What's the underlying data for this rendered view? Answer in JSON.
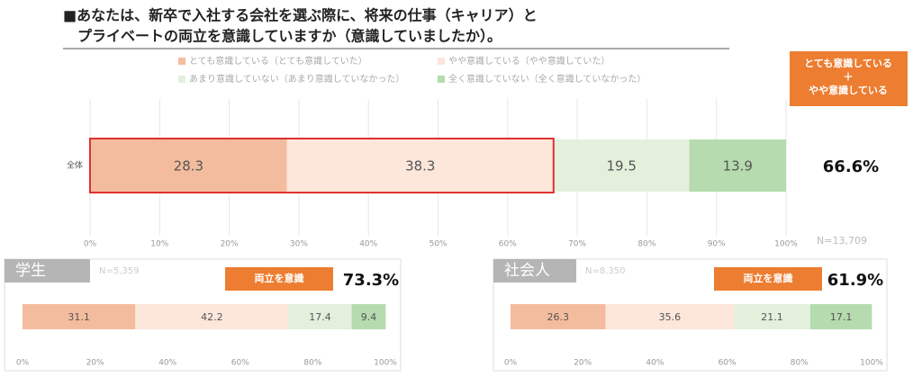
{
  "title": [
    "■あなたは、新卒で入社する会社を選ぶ際に、将来の仕事（キャリア）と",
    "プライベートの両立を意識していますか（意識していましたか）。"
  ],
  "chart_data": [
    {
      "type": "stacked_bar_h",
      "categories": [
        "全体"
      ],
      "series": [
        {
          "name": "とても意識している（とても意識していた）",
          "color": "#f4bc9e",
          "values": [
            28.3
          ]
        },
        {
          "name": "やや意識している（やや意識していた）",
          "color": "#fde6da",
          "values": [
            38.3
          ]
        },
        {
          "name": "あまり意識していない（あまり意識していなかった）",
          "color": "#e3f0dc",
          "values": [
            19.5
          ]
        },
        {
          "name": "全く意識していない（全く意識していなかった）",
          "color": "#b5dbae",
          "values": [
            13.9
          ]
        }
      ],
      "xlim": [
        0,
        100
      ],
      "xticks": [
        {
          "value": 0,
          "label": "0%"
        },
        {
          "value": 10,
          "label": "10%"
        },
        {
          "value": 20,
          "label": "20%"
        },
        {
          "value": 30,
          "label": "30%"
        },
        {
          "value": 40,
          "label": "40%"
        },
        {
          "value": 50,
          "label": "50%"
        },
        {
          "value": 60,
          "label": "60%"
        },
        {
          "value": 70,
          "label": "70%"
        },
        {
          "value": 80,
          "label": "80%"
        },
        {
          "value": 90,
          "label": "90%"
        },
        {
          "value": 100,
          "label": "100%"
        }
      ],
      "grid": true,
      "note": "N=13,709",
      "badge": [
        "とても意識している",
        "＋",
        "やや意識している"
      ],
      "summary": {
        "value": 66.6,
        "label": "66.6%"
      }
    },
    {
      "type": "stacked_bar_h",
      "subtitle": "学生",
      "note": "N=5,359",
      "badge": [
        "両立を意識"
      ],
      "values": [
        31.1,
        42.2,
        17.4,
        9.4
      ],
      "xlim": [
        0,
        100
      ],
      "xticks": [
        {
          "value": 0,
          "label": "0%"
        },
        {
          "value": 20,
          "label": "20%"
        },
        {
          "value": 40,
          "label": "40%"
        },
        {
          "value": 60,
          "label": "60%"
        },
        {
          "value": 80,
          "label": "80%"
        },
        {
          "value": 100,
          "label": "100%"
        }
      ],
      "summary": {
        "value": 73.3,
        "label": "73.3%"
      }
    },
    {
      "type": "stacked_bar_h",
      "subtitle": "社会人",
      "note": "N=8,350",
      "badge": [
        "両立を意識"
      ],
      "values": [
        26.3,
        35.6,
        21.1,
        17.1
      ],
      "xlim": [
        0,
        100
      ],
      "xticks": [
        {
          "value": 0,
          "label": "0%"
        },
        {
          "value": 20,
          "label": "20%"
        },
        {
          "value": 40,
          "label": "40%"
        },
        {
          "value": 60,
          "label": "60%"
        },
        {
          "value": 80,
          "label": "80%"
        },
        {
          "value": 100,
          "label": "100%"
        }
      ],
      "summary": {
        "value": 61.9,
        "label": "61.9%"
      }
    }
  ]
}
